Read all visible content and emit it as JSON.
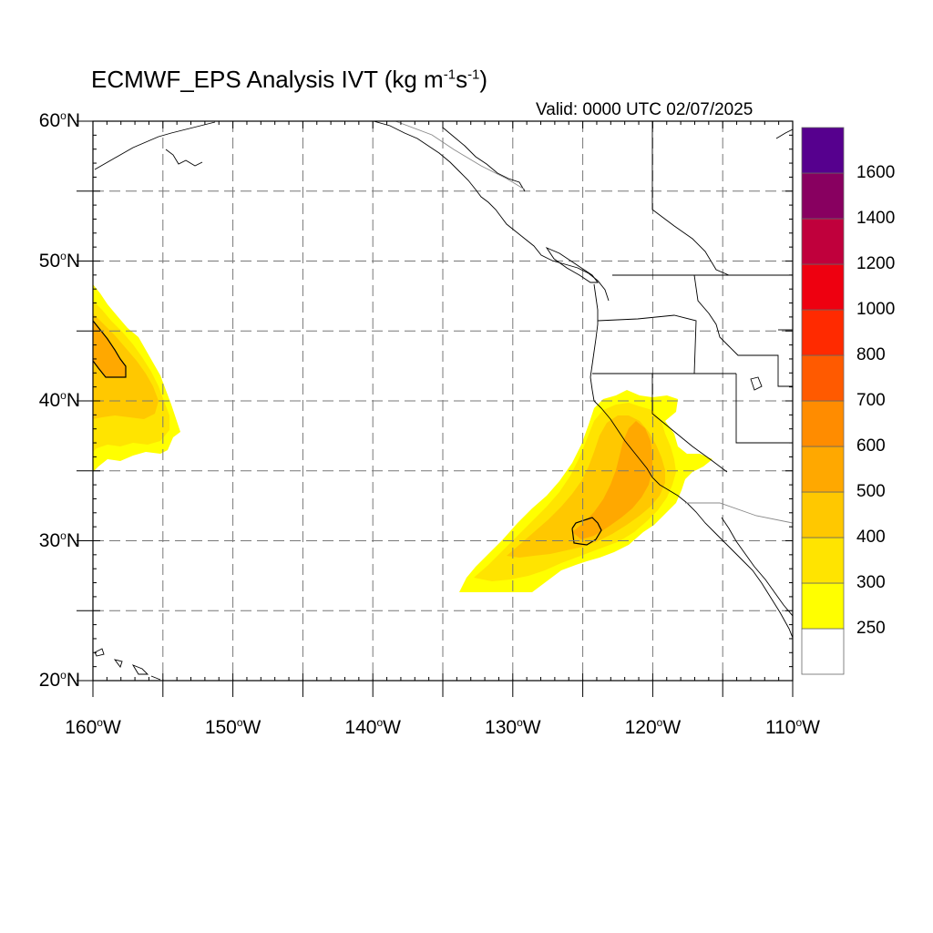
{
  "title": {
    "prefix": "ECMWF_EPS Analysis IVT (kg m",
    "sup1": "-1",
    "mid": "s",
    "sup2": "-1",
    "suffix": ")"
  },
  "valid_time": "Valid: 0000 UTC 02/07/2025",
  "map": {
    "projection": "cylindrical equidistant",
    "lon_range": [
      -160,
      -110
    ],
    "lat_range": [
      20,
      60
    ],
    "gridlines": "dashed, every 5 degrees",
    "lat_labels": [
      {
        "value": 60,
        "num": "60",
        "hemi": "N"
      },
      {
        "value": 50,
        "num": "50",
        "hemi": "N"
      },
      {
        "value": 40,
        "num": "40",
        "hemi": "N"
      },
      {
        "value": 30,
        "num": "30",
        "hemi": "N"
      },
      {
        "value": 20,
        "num": "20",
        "hemi": "N"
      }
    ],
    "lon_labels": [
      {
        "value": -160,
        "num": "160",
        "hemi": "W"
      },
      {
        "value": -150,
        "num": "150",
        "hemi": "W"
      },
      {
        "value": -140,
        "num": "140",
        "hemi": "W"
      },
      {
        "value": -130,
        "num": "130",
        "hemi": "W"
      },
      {
        "value": -120,
        "num": "120",
        "hemi": "W"
      },
      {
        "value": -110,
        "num": "110",
        "hemi": "W"
      }
    ]
  },
  "colorbar": {
    "orientation": "vertical",
    "placement": "right",
    "levels": [
      250,
      300,
      400,
      500,
      600,
      700,
      800,
      1000,
      1200,
      1400,
      1600
    ],
    "labels": [
      "250",
      "300",
      "400",
      "500",
      "600",
      "700",
      "800",
      "1000",
      "1200",
      "1400",
      "1600"
    ],
    "colors": [
      "#ffffff",
      "#ffff00",
      "#ffe400",
      "#ffc800",
      "#ffa800",
      "#ff8c00",
      "#ff5a00",
      "#ff2a00",
      "#ee0010",
      "#c0003c",
      "#880060",
      "#56008e"
    ]
  },
  "ivt_regions": [
    {
      "name": "north-pacific-plume",
      "colors": [
        "#ffff00",
        "#ffe400",
        "#ffc800",
        "#ffa800"
      ],
      "max_contour": 500
    },
    {
      "name": "california-atmospheric-river",
      "colors": [
        "#ffff00",
        "#ffe400",
        "#ffc800",
        "#ffa800"
      ],
      "max_contour": 500
    }
  ]
}
